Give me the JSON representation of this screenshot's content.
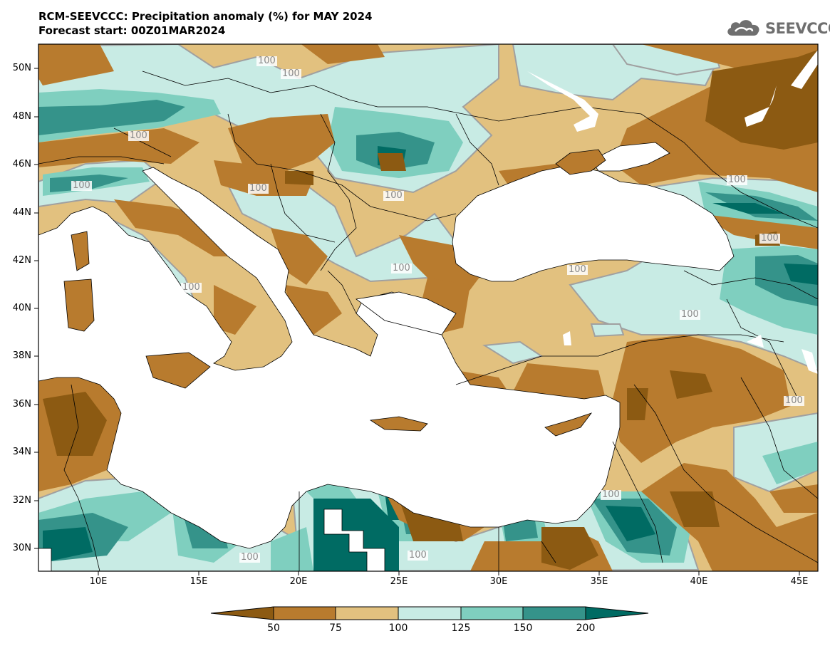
{
  "title": {
    "line1": "RCM-SEEVCCC: Precipitation anomaly (%) for MAY 2024",
    "line2": "Forecast start: 00Z01MAR2024"
  },
  "logo": {
    "text": "SEEVCCC",
    "icon": "cloud-icon"
  },
  "axes": {
    "latitudes": [
      "50N",
      "48N",
      "46N",
      "44N",
      "42N",
      "40N",
      "38N",
      "36N",
      "34N",
      "32N",
      "30N"
    ],
    "longitudes": [
      "10E",
      "15E",
      "20E",
      "25E",
      "30E",
      "35E",
      "40E",
      "45E"
    ]
  },
  "contour_labels": [
    "100",
    "100",
    "100",
    "100",
    "100",
    "100",
    "100",
    "100",
    "100",
    "100",
    "100",
    "100",
    "100",
    "100",
    "100",
    "100"
  ],
  "colorbar": {
    "levels": [
      "50",
      "75",
      "100",
      "125",
      "150",
      "200"
    ],
    "colors": {
      "below_50": "#8c5a12",
      "50_75": "#b87b2e",
      "75_100": "#e2c17f",
      "100_125": "#c8ebe4",
      "125_150": "#7fcfbf",
      "150_200": "#35938a",
      "above_200": "#006b63"
    }
  },
  "colors": {
    "land_default": "#e2c17f",
    "sea": "#ffffff",
    "border": "#000000",
    "contour": "#a0a0a0"
  }
}
